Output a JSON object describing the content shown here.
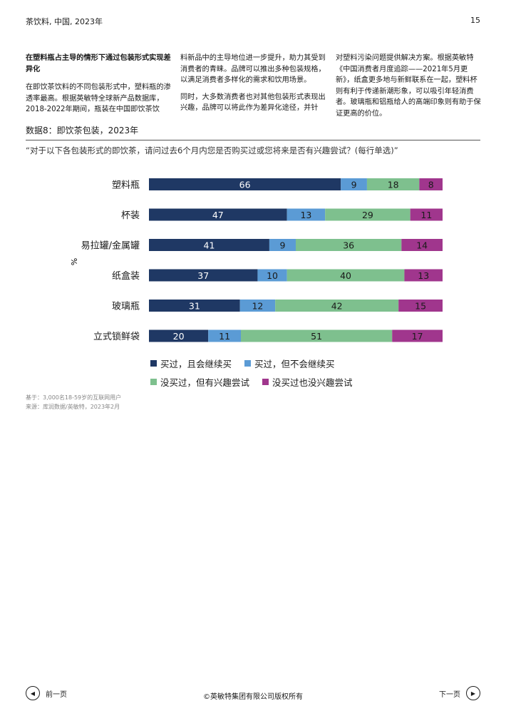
{
  "header": {
    "left": "茶饮料, 中国, 2023年",
    "page_number": "15"
  },
  "article": {
    "heading": "在塑料瓶占主导的情形下通过包装形式实现差异化",
    "col1_p1": "在即饮茶饮料的不同包装形式中，塑料瓶的渗透率最高。根据英敏特全球新产品数据库，2018-2022年期间，瓶装在中国即饮茶饮",
    "col2_p1": "料新品中的主导地位进一步提升，助力其受到消费者的青睐。品牌可以推出多种包装规格，以满足消费者多样化的需求和饮用场景。",
    "col2_p2": "同时，大多数消费者也对其他包装形式表现出兴趣，品牌可以将此作为差异化途径，并针",
    "col3_p1": "对塑料污染问题提供解决方案。根据英敏特《中国消费者月度追踪——2021年5月更新》，纸盒更多地与新鲜联系在一起，塑料杯则有利于传递新潮形象，可以吸引年轻消费者。玻璃瓶和铝瓶给人的高端印象则有助于保证更高的价位。"
  },
  "figure": {
    "title": "数据8：即饮茶包装，2023年",
    "question": "“对于以下各包装形式的即饮茶，请问过去6个月内您是否购买过或您将来是否有兴趣尝试？(每行单选)”"
  },
  "chart_data": {
    "type": "bar",
    "orientation": "horizontal",
    "stacked": true,
    "ylabel": "%",
    "categories": [
      "塑料瓶",
      "杯装",
      "易拉罐/金属罐",
      "纸盒装",
      "玻璃瓶",
      "立式锁鲜袋"
    ],
    "series": [
      {
        "name": "买过，且会继续买",
        "color": "#1f3864",
        "values": [
          66,
          47,
          41,
          37,
          31,
          20
        ]
      },
      {
        "name": "买过，但不会继续买",
        "color": "#5b9bd5",
        "values": [
          9,
          13,
          9,
          10,
          12,
          11
        ]
      },
      {
        "name": "没买过，但有兴趣尝试",
        "color": "#7ec08e",
        "values": [
          18,
          29,
          36,
          40,
          42,
          51
        ]
      },
      {
        "name": "没买过也没兴趣尝试",
        "color": "#a0368d",
        "values": [
          8,
          11,
          14,
          13,
          15,
          17
        ]
      }
    ]
  },
  "notes": {
    "base": "基于：3,000名18-59岁的互联网用户",
    "source": "来源：库润数据/英敏特，2023年2月"
  },
  "footer": {
    "prev_label": "前一页",
    "next_label": "下一页",
    "copyright": "©英敏特集团有限公司版权所有",
    "prev_icon": "◀",
    "next_icon": "▶"
  }
}
